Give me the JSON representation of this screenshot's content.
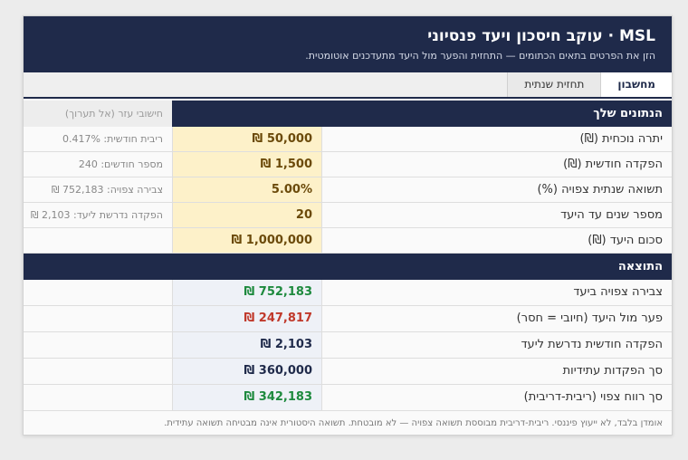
{
  "header": {
    "title": "MSL · עוקב חיסכון ויעד פנסיוני",
    "subtitle": "הזן את הפרטים בתאים הכתומים — התחזית והפער מול היעד מתעדכנים אוטומטית."
  },
  "tabs": [
    {
      "label": "מחשבון",
      "active": true
    },
    {
      "label": "תחזית שנתית",
      "active": false
    }
  ],
  "inputs": {
    "title": "הנתונים שלך",
    "aux_title": "חישובי עזר (אל תערוך)",
    "rows": [
      {
        "label": "יתרה נוכחית (₪)",
        "value": "50,000 ₪",
        "note": "ריבית חודשית: 0.417%"
      },
      {
        "label": "הפקדה חודשית (₪)",
        "value": "1,500 ₪",
        "note": "מספר חודשים: 240"
      },
      {
        "label": "תשואה שנתית צפויה (%)",
        "value": "5.00%",
        "note": "צבירה צפויה: 752,183 ₪"
      },
      {
        "label": "מספר שנים עד היעד",
        "value": "20",
        "note": "הפקדה נדרשת ליעד: 2,103 ₪"
      },
      {
        "label": "סכום היעד (₪)",
        "value": "1,000,000 ₪"
      }
    ]
  },
  "results": {
    "title": "התוצאה",
    "rows": [
      {
        "label": "צבירה צפויה ביעד",
        "value": "752,183 ₪",
        "color": "#1e8a3e"
      },
      {
        "label": "פער מול היעד (חיובי = חסר)",
        "value": "247,817 ₪",
        "color": "#c0392b"
      },
      {
        "label": "הפקדה חודשית נדרשת ליעד",
        "value": "2,103 ₪",
        "color": "#1f2a4a"
      },
      {
        "label": "סך הפקדות עתידיות",
        "value": "360,000 ₪",
        "color": "#1f2a4a"
      },
      {
        "label": "סך רווח צפוי (ריבית-דריבית)",
        "value": "342,183 ₪",
        "color": "#1e8a3e"
      }
    ]
  },
  "footer": "אומדן בלבד, לא ייעוץ פיננסי. ריבית-דריבית מבוססת תשואה צפויה — לא מובטחת. תשואה היסטורית אינה מבטיחה תשואה עתידית."
}
